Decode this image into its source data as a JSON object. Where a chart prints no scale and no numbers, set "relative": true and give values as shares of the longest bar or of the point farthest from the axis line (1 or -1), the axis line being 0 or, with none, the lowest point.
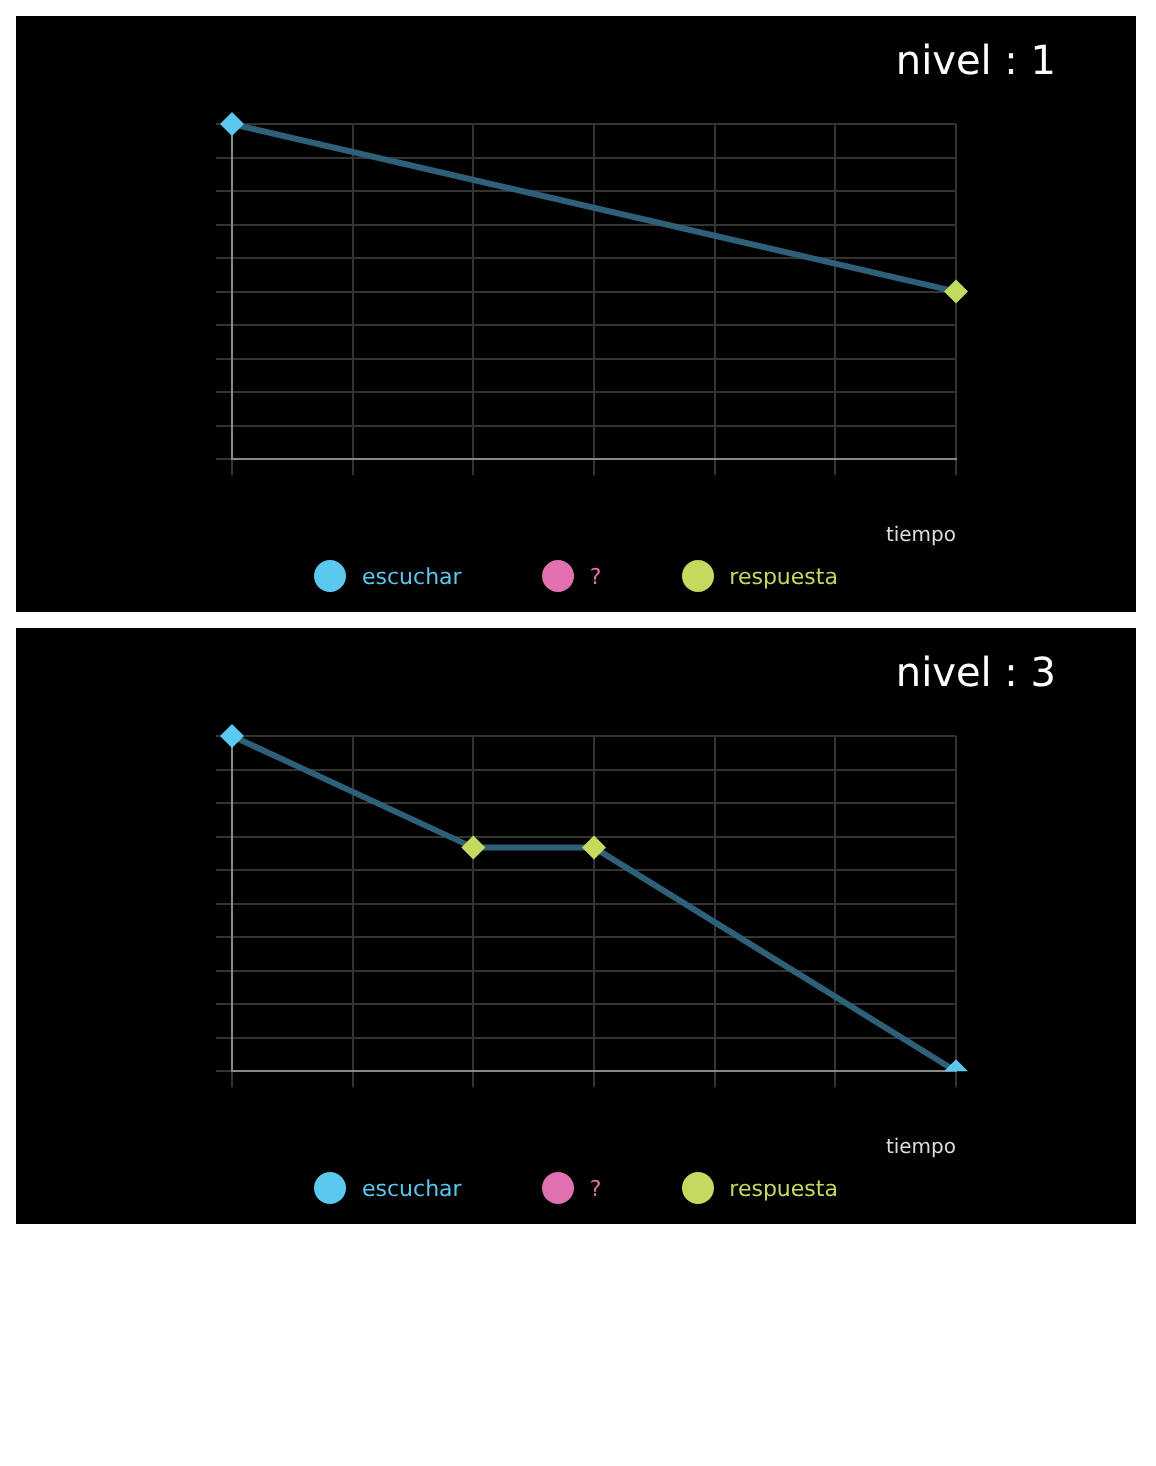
{
  "chart_data": [
    {
      "type": "line",
      "title": "nivel : 1",
      "xlabel": "tiempo",
      "relative": true,
      "grid": true,
      "categories": [
        null,
        null,
        null,
        null,
        null,
        null,
        null
      ],
      "annotations": [
        "escuchar",
        "?",
        "respuesta"
      ],
      "series": [
        {
          "color": "#2e6079",
          "marker": "diamond",
          "colors": [
            "#5bc8f0",
            null,
            null,
            null,
            null,
            null,
            "#c4da5e"
          ],
          "values": [
            1,
            null,
            null,
            null,
            null,
            null,
            0.5
          ]
        }
      ]
    },
    {
      "type": "line",
      "title": "nivel : 3",
      "xlabel": "tiempo",
      "relative": true,
      "grid": true,
      "categories": [
        null,
        null,
        null,
        null,
        null,
        null,
        null
      ],
      "annotations": [
        "escuchar",
        "?",
        "respuesta"
      ],
      "series": [
        {
          "color": "#2e6079",
          "marker": "diamond",
          "colors": [
            "#5bc8f0",
            null,
            "#c4da5e",
            "#c4da5e",
            null,
            null,
            "#5bc8f0"
          ],
          "values": [
            1,
            null,
            0.667,
            0.667,
            null,
            null,
            0
          ]
        }
      ]
    }
  ]
}
